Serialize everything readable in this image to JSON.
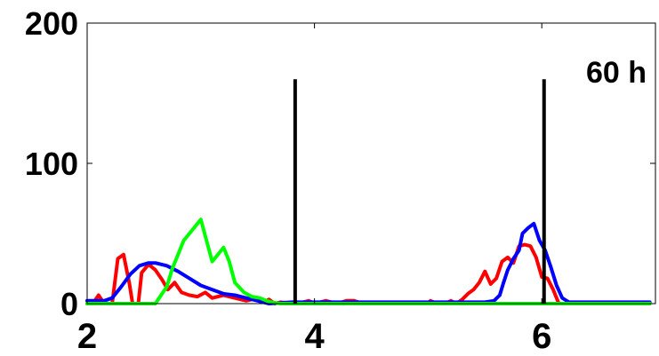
{
  "chart_data": {
    "type": "line",
    "title": "",
    "xlabel": "",
    "ylabel": "",
    "xlim": [
      2.0,
      7.0
    ],
    "ylim": [
      0,
      200
    ],
    "x_ticks": [
      "2",
      "4",
      "6"
    ],
    "y_ticks": [
      "0",
      "100",
      "200"
    ],
    "annotation": "60 h",
    "grid": false,
    "colors": {
      "red": "#ff0000",
      "blue": "#0000ff",
      "green": "#00ff00",
      "marker": "#000000",
      "axis": "#000000"
    },
    "vertical_markers": [
      {
        "x": 3.83,
        "y_top": 160
      },
      {
        "x": 6.02,
        "y_top": 160
      }
    ],
    "series": [
      {
        "color_key": "red",
        "points": [
          [
            2.0,
            0
          ],
          [
            2.05,
            0
          ],
          [
            2.1,
            6
          ],
          [
            2.15,
            0
          ],
          [
            2.22,
            0
          ],
          [
            2.27,
            32
          ],
          [
            2.32,
            35
          ],
          [
            2.37,
            15
          ],
          [
            2.4,
            0
          ],
          [
            2.45,
            0
          ],
          [
            2.48,
            22
          ],
          [
            2.54,
            28
          ],
          [
            2.6,
            24
          ],
          [
            2.66,
            17
          ],
          [
            2.71,
            10
          ],
          [
            2.77,
            15
          ],
          [
            2.83,
            8
          ],
          [
            2.9,
            6
          ],
          [
            2.97,
            5
          ],
          [
            3.04,
            8
          ],
          [
            3.1,
            4
          ],
          [
            3.2,
            6
          ],
          [
            3.3,
            4
          ],
          [
            3.4,
            2
          ],
          [
            3.5,
            4
          ],
          [
            3.55,
            1
          ],
          [
            3.6,
            3
          ],
          [
            3.65,
            0
          ],
          [
            3.7,
            1
          ],
          [
            3.8,
            0
          ],
          [
            3.9,
            1
          ],
          [
            3.95,
            2
          ],
          [
            4.0,
            0
          ],
          [
            4.1,
            2
          ],
          [
            4.2,
            0
          ],
          [
            4.28,
            2
          ],
          [
            4.35,
            2
          ],
          [
            4.42,
            0
          ],
          [
            4.55,
            0
          ],
          [
            4.75,
            0
          ],
          [
            5.0,
            0
          ],
          [
            5.02,
            2
          ],
          [
            5.08,
            0
          ],
          [
            5.15,
            0
          ],
          [
            5.2,
            2
          ],
          [
            5.25,
            0
          ],
          [
            5.3,
            3
          ],
          [
            5.35,
            7
          ],
          [
            5.4,
            10
          ],
          [
            5.45,
            15
          ],
          [
            5.5,
            23
          ],
          [
            5.55,
            14
          ],
          [
            5.6,
            18
          ],
          [
            5.65,
            30
          ],
          [
            5.7,
            33
          ],
          [
            5.75,
            29
          ],
          [
            5.8,
            41
          ],
          [
            5.85,
            42
          ],
          [
            5.9,
            41
          ],
          [
            5.95,
            33
          ],
          [
            6.0,
            19
          ],
          [
            6.05,
            18
          ],
          [
            6.1,
            10
          ],
          [
            6.15,
            0
          ],
          [
            6.25,
            0
          ],
          [
            6.5,
            0
          ],
          [
            6.8,
            0
          ],
          [
            6.95,
            0
          ]
        ]
      },
      {
        "color_key": "blue",
        "points": [
          [
            2.0,
            2
          ],
          [
            2.15,
            2
          ],
          [
            2.22,
            4
          ],
          [
            2.3,
            12
          ],
          [
            2.38,
            21
          ],
          [
            2.46,
            27
          ],
          [
            2.54,
            29
          ],
          [
            2.6,
            29
          ],
          [
            2.7,
            27
          ],
          [
            2.8,
            23
          ],
          [
            2.9,
            18
          ],
          [
            3.0,
            13
          ],
          [
            3.1,
            10
          ],
          [
            3.2,
            7
          ],
          [
            3.3,
            6
          ],
          [
            3.4,
            4
          ],
          [
            3.5,
            2
          ],
          [
            3.6,
            0
          ],
          [
            3.8,
            1
          ],
          [
            4.0,
            1
          ],
          [
            4.5,
            1
          ],
          [
            5.0,
            1
          ],
          [
            5.3,
            1
          ],
          [
            5.5,
            1
          ],
          [
            5.58,
            2
          ],
          [
            5.63,
            6
          ],
          [
            5.66,
            14
          ],
          [
            5.7,
            24
          ],
          [
            5.75,
            32
          ],
          [
            5.8,
            38
          ],
          [
            5.83,
            50
          ],
          [
            5.88,
            54
          ],
          [
            5.93,
            57
          ],
          [
            5.98,
            45
          ],
          [
            6.03,
            38
          ],
          [
            6.08,
            26
          ],
          [
            6.13,
            13
          ],
          [
            6.18,
            4
          ],
          [
            6.24,
            1
          ],
          [
            6.4,
            1
          ],
          [
            6.7,
            1
          ],
          [
            6.95,
            1
          ]
        ]
      },
      {
        "color_key": "green",
        "points": [
          [
            2.0,
            0
          ],
          [
            2.3,
            0
          ],
          [
            2.55,
            0
          ],
          [
            2.6,
            0
          ],
          [
            2.7,
            12
          ],
          [
            2.75,
            25
          ],
          [
            2.8,
            35
          ],
          [
            2.85,
            45
          ],
          [
            2.9,
            50
          ],
          [
            2.95,
            55
          ],
          [
            3.0,
            60
          ],
          [
            3.05,
            45
          ],
          [
            3.1,
            30
          ],
          [
            3.15,
            35
          ],
          [
            3.2,
            40
          ],
          [
            3.25,
            30
          ],
          [
            3.3,
            15
          ],
          [
            3.38,
            8
          ],
          [
            3.45,
            5
          ],
          [
            3.52,
            4
          ],
          [
            3.58,
            2
          ],
          [
            3.62,
            1
          ],
          [
            3.7,
            0
          ],
          [
            4.0,
            0
          ],
          [
            4.5,
            0
          ],
          [
            5.0,
            0
          ],
          [
            5.5,
            0
          ],
          [
            6.0,
            0
          ],
          [
            6.5,
            0
          ],
          [
            6.95,
            0
          ]
        ]
      }
    ]
  }
}
